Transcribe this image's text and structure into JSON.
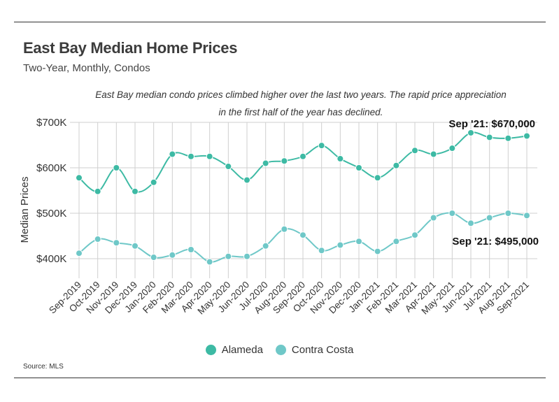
{
  "header": {
    "title": "East Bay Median Home Prices",
    "subtitle": "Two-Year, Monthly, Condos",
    "annotation": "East Bay median condo prices climbed higher over the last two years. The rapid price appreciation in the first half of the year has declined."
  },
  "footer": {
    "source": "Source: MLS"
  },
  "chart_data": {
    "type": "line",
    "ylabel": "Median Prices",
    "ylim": [
      360000,
      720000
    ],
    "yticks": [
      400000,
      500000,
      600000,
      700000
    ],
    "ytick_labels": [
      "$400K",
      "$500K",
      "$600K",
      "$700K"
    ],
    "grid": true,
    "legend": "bottom-center",
    "categories": [
      "Sep-2019",
      "Oct-2019",
      "Nov-2019",
      "Dec-2019",
      "Jan-2020",
      "Feb-2020",
      "Mar-2020",
      "Apr-2020",
      "May-2020",
      "Jun-2020",
      "Jul-2020",
      "Aug-2020",
      "Sep-2020",
      "Oct-2020",
      "Nov-2020",
      "Dec-2020",
      "Jan-2021",
      "Feb-2021",
      "Mar-2021",
      "Apr-2021",
      "May-2021",
      "Jun-2021",
      "Jul-2021",
      "Aug-2021",
      "Sep-2021"
    ],
    "series": [
      {
        "name": "Alameda",
        "color": "#3dbaa4",
        "values": [
          578000,
          548000,
          600000,
          548000,
          568000,
          630000,
          625000,
          625000,
          603000,
          573000,
          610000,
          615000,
          625000,
          649000,
          620000,
          600000,
          578000,
          605000,
          638000,
          630000,
          643000,
          677000,
          667000,
          665000,
          670000
        ]
      },
      {
        "name": "Contra Costa",
        "color": "#6fc8c8",
        "values": [
          412000,
          443000,
          435000,
          428000,
          403000,
          408000,
          420000,
          393000,
          405000,
          405000,
          428000,
          465000,
          452000,
          418000,
          430000,
          438000,
          416000,
          438000,
          452000,
          490000,
          500000,
          478000,
          490000,
          500000,
          495000
        ]
      }
    ],
    "callouts": [
      {
        "series": "Alameda",
        "text": "Sep '21: $670,000"
      },
      {
        "series": "Contra Costa",
        "text": "Sep '21: $495,000"
      }
    ]
  }
}
